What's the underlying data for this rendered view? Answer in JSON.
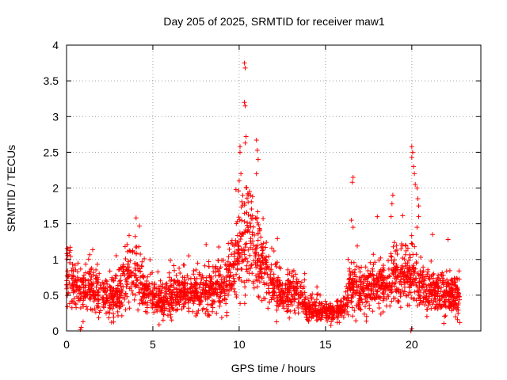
{
  "chart_data": {
    "type": "scatter",
    "title": "Day 205 of 2025, SRMTID for receiver maw1",
    "xlabel": "GPS time / hours",
    "ylabel": "SRMTID / TECUs",
    "xlim": [
      0,
      24
    ],
    "ylim": [
      0,
      4
    ],
    "xticks": [
      0,
      5,
      10,
      15,
      20
    ],
    "yticks": [
      0,
      0.5,
      1,
      1.5,
      2,
      2.5,
      3,
      3.5,
      4
    ],
    "xtick_labels": [
      "0",
      "5",
      "10",
      "15",
      "20"
    ],
    "ytick_labels": [
      "0",
      "0.5",
      "1",
      "1.5",
      "2",
      "2.5",
      "3",
      "3.5",
      "4"
    ],
    "grid": true,
    "marker": "+",
    "color": "#ff0000",
    "data_extent_hours": [
      0,
      22.8
    ],
    "baseline_profile": [
      [
        0.0,
        0.75
      ],
      [
        0.5,
        0.65
      ],
      [
        1.0,
        0.55
      ],
      [
        1.5,
        0.6
      ],
      [
        2.0,
        0.5
      ],
      [
        2.5,
        0.45
      ],
      [
        3.0,
        0.55
      ],
      [
        3.5,
        0.8
      ],
      [
        4.0,
        0.85
      ],
      [
        4.5,
        0.55
      ],
      [
        5.0,
        0.45
      ],
      [
        5.5,
        0.4
      ],
      [
        6.0,
        0.5
      ],
      [
        6.5,
        0.55
      ],
      [
        7.0,
        0.5
      ],
      [
        7.5,
        0.5
      ],
      [
        8.0,
        0.55
      ],
      [
        8.5,
        0.6
      ],
      [
        9.0,
        0.6
      ],
      [
        9.5,
        0.75
      ],
      [
        10.0,
        1.1
      ],
      [
        10.3,
        1.45
      ],
      [
        10.7,
        1.25
      ],
      [
        11.0,
        1.05
      ],
      [
        11.5,
        0.85
      ],
      [
        12.0,
        0.6
      ],
      [
        12.5,
        0.55
      ],
      [
        13.0,
        0.55
      ],
      [
        13.5,
        0.5
      ],
      [
        14.0,
        0.3
      ],
      [
        14.5,
        0.3
      ],
      [
        15.0,
        0.28
      ],
      [
        15.5,
        0.25
      ],
      [
        16.0,
        0.3
      ],
      [
        16.5,
        0.65
      ],
      [
        17.0,
        0.55
      ],
      [
        17.5,
        0.6
      ],
      [
        18.0,
        0.65
      ],
      [
        18.5,
        0.6
      ],
      [
        19.0,
        0.85
      ],
      [
        19.5,
        0.7
      ],
      [
        20.0,
        0.8
      ],
      [
        20.5,
        0.6
      ],
      [
        21.0,
        0.55
      ],
      [
        21.5,
        0.55
      ],
      [
        22.0,
        0.5
      ],
      [
        22.8,
        0.45
      ]
    ],
    "notable_points": [
      {
        "x": 10.3,
        "y": 3.75
      },
      {
        "x": 10.35,
        "y": 3.68
      },
      {
        "x": 10.3,
        "y": 3.2
      },
      {
        "x": 10.35,
        "y": 3.15
      },
      {
        "x": 10.4,
        "y": 2.72
      },
      {
        "x": 10.35,
        "y": 2.63
      },
      {
        "x": 10.05,
        "y": 2.58
      },
      {
        "x": 10.05,
        "y": 2.5
      },
      {
        "x": 11.0,
        "y": 2.67
      },
      {
        "x": 11.05,
        "y": 2.53
      },
      {
        "x": 11.1,
        "y": 2.4
      },
      {
        "x": 10.1,
        "y": 2.2
      },
      {
        "x": 11.0,
        "y": 2.2
      },
      {
        "x": 10.0,
        "y": 2.1
      },
      {
        "x": 10.6,
        "y": 1.95
      },
      {
        "x": 16.6,
        "y": 2.15
      },
      {
        "x": 16.55,
        "y": 2.08
      },
      {
        "x": 16.5,
        "y": 1.55
      },
      {
        "x": 16.6,
        "y": 1.45
      },
      {
        "x": 18.0,
        "y": 1.6
      },
      {
        "x": 18.9,
        "y": 1.9
      },
      {
        "x": 18.85,
        "y": 1.78
      },
      {
        "x": 18.8,
        "y": 1.6
      },
      {
        "x": 20.0,
        "y": 2.58
      },
      {
        "x": 20.05,
        "y": 2.5
      },
      {
        "x": 20.0,
        "y": 2.43
      },
      {
        "x": 20.1,
        "y": 2.3
      },
      {
        "x": 20.15,
        "y": 2.2
      },
      {
        "x": 20.2,
        "y": 2.05
      },
      {
        "x": 20.3,
        "y": 2.0
      },
      {
        "x": 20.35,
        "y": 1.85
      },
      {
        "x": 20.4,
        "y": 1.75
      },
      {
        "x": 20.4,
        "y": 1.6
      },
      {
        "x": 20.3,
        "y": 1.45
      },
      {
        "x": 21.2,
        "y": 1.35
      },
      {
        "x": 22.1,
        "y": 1.28
      },
      {
        "x": 0.8,
        "y": 0.02
      },
      {
        "x": 0.85,
        "y": 0.05
      },
      {
        "x": 19.95,
        "y": 0.0
      },
      {
        "x": 20.0,
        "y": 0.03
      },
      {
        "x": 14.0,
        "y": 0.15
      },
      {
        "x": 15.8,
        "y": 0.12
      }
    ]
  }
}
